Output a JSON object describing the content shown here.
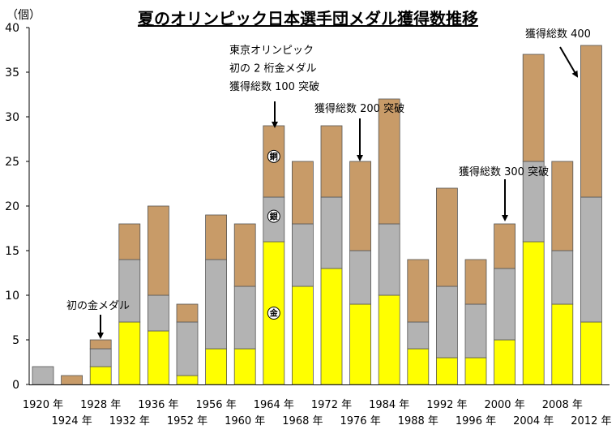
{
  "title": "夏のオリンピック日本選手団メダル獲得数推移",
  "unit_label": "（個）",
  "chart_data": {
    "type": "bar",
    "stacked": true,
    "categories": [
      "1920 年",
      "1924 年",
      "1928 年",
      "1932 年",
      "1936 年",
      "1952 年",
      "1956 年",
      "1960 年",
      "1964 年",
      "1968 年",
      "1972 年",
      "1976 年",
      "1984 年",
      "1988 年",
      "1992 年",
      "1996 年",
      "2000 年",
      "2004 年",
      "2008 年",
      "2012 年"
    ],
    "series": [
      {
        "name": "金",
        "color": "#ffff00",
        "values": [
          0,
          0,
          2,
          7,
          6,
          1,
          4,
          4,
          16,
          11,
          13,
          9,
          10,
          4,
          3,
          3,
          5,
          16,
          9,
          7
        ]
      },
      {
        "name": "銀",
        "color": "#b3b3b3",
        "values": [
          2,
          0,
          2,
          7,
          4,
          6,
          10,
          7,
          5,
          7,
          8,
          6,
          8,
          3,
          8,
          6,
          8,
          9,
          6,
          14
        ]
      },
      {
        "name": "銅",
        "color": "#c89b68",
        "values": [
          0,
          1,
          1,
          4,
          10,
          2,
          5,
          7,
          8,
          7,
          8,
          10,
          14,
          7,
          11,
          5,
          5,
          12,
          10,
          17
        ]
      }
    ],
    "ylim": [
      0,
      40
    ],
    "yticks": [
      0,
      5,
      10,
      15,
      20,
      25,
      30,
      35,
      40
    ],
    "grid": false,
    "medal_badges": [
      {
        "text": "銅",
        "category": "1964 年",
        "series": "銅"
      },
      {
        "text": "銀",
        "category": "1964 年",
        "series": "銀"
      },
      {
        "text": "金",
        "category": "1964 年",
        "series": "金"
      }
    ],
    "annotations": [
      {
        "lines": [
          "初の金メダル"
        ],
        "category": "1928 年"
      },
      {
        "lines": [
          "東京オリンピック",
          "初の 2 桁金メダル",
          "獲得総数 100 突破"
        ],
        "category": "1964 年"
      },
      {
        "lines": [
          "獲得総数 200 突破"
        ],
        "category": "1976 年"
      },
      {
        "lines": [
          "獲得総数 300 突破"
        ],
        "category": "2000 年"
      },
      {
        "lines": [
          "獲得総数 400"
        ],
        "category": "2012 年"
      }
    ]
  }
}
